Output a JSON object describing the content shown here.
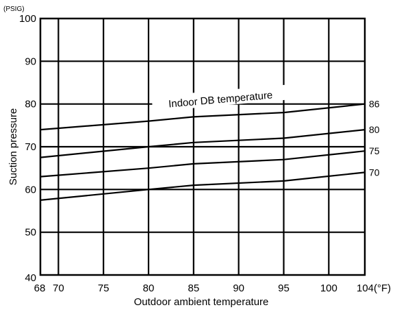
{
  "chart_data": {
    "type": "line",
    "title": "",
    "xlabel": "Outdoor ambient temperature",
    "ylabel": "Suction pressure",
    "y_unit": "(PSIG)",
    "x_unit": "(°F)",
    "xlim": [
      68,
      104
    ],
    "ylim": [
      40,
      100
    ],
    "x_ticks": [
      68,
      70,
      75,
      80,
      85,
      90,
      95,
      100,
      104
    ],
    "x_tick_labels": [
      "68",
      "70",
      "75",
      "80",
      "85",
      "90",
      "95",
      "100",
      "104(°F)"
    ],
    "y_ticks": [
      40,
      50,
      60,
      70,
      80,
      90,
      100
    ],
    "y_tick_labels": [
      "40",
      "50",
      "60",
      "70",
      "80",
      "90",
      "100"
    ],
    "grid": true,
    "annotation": "Indoor DB temperature",
    "x": [
      68,
      80,
      85,
      95,
      104
    ],
    "series": [
      {
        "name": "86",
        "values": [
          74,
          76,
          77,
          78,
          80
        ]
      },
      {
        "name": "80",
        "values": [
          67.5,
          70,
          71,
          72,
          74
        ]
      },
      {
        "name": "75",
        "values": [
          63,
          65,
          66,
          67,
          69
        ]
      },
      {
        "name": "70",
        "values": [
          57.5,
          60,
          61,
          62,
          64
        ]
      }
    ]
  }
}
